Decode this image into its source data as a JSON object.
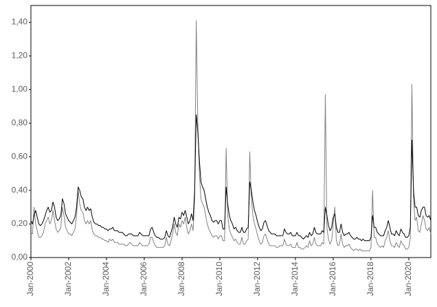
{
  "chart_data": {
    "type": "line",
    "x": [
      "Jan-2000",
      "Feb-2000",
      "Mar-2000",
      "Apr-2000",
      "May-2000",
      "Jun-2000",
      "Jul-2000",
      "Aug-2000",
      "Sep-2000",
      "Oct-2000",
      "Nov-2000",
      "Dec-2000",
      "Jan-2001",
      "Feb-2001",
      "Mar-2001",
      "Apr-2001",
      "May-2001",
      "Jun-2001",
      "Jul-2001",
      "Aug-2001",
      "Sep-2001",
      "Oct-2001",
      "Nov-2001",
      "Dec-2001",
      "Jan-2002",
      "Feb-2002",
      "Mar-2002",
      "Apr-2002",
      "May-2002",
      "Jun-2002",
      "Jul-2002",
      "Aug-2002",
      "Sep-2002",
      "Oct-2002",
      "Nov-2002",
      "Dec-2002",
      "Jan-2003",
      "Feb-2003",
      "Mar-2003",
      "Apr-2003",
      "May-2003",
      "Jun-2003",
      "Jul-2003",
      "Aug-2003",
      "Sep-2003",
      "Oct-2003",
      "Nov-2003",
      "Dec-2003",
      "Jan-2004",
      "Feb-2004",
      "Mar-2004",
      "Apr-2004",
      "May-2004",
      "Jun-2004",
      "Jul-2004",
      "Aug-2004",
      "Sep-2004",
      "Oct-2004",
      "Nov-2004",
      "Dec-2004",
      "Jan-2005",
      "Feb-2005",
      "Mar-2005",
      "Apr-2005",
      "May-2005",
      "Jun-2005",
      "Jul-2005",
      "Aug-2005",
      "Sep-2005",
      "Oct-2005",
      "Nov-2005",
      "Dec-2005",
      "Jan-2006",
      "Feb-2006",
      "Mar-2006",
      "Apr-2006",
      "May-2006",
      "Jun-2006",
      "Jul-2006",
      "Aug-2006",
      "Sep-2006",
      "Oct-2006",
      "Nov-2006",
      "Dec-2006",
      "Jan-2007",
      "Feb-2007",
      "Mar-2007",
      "Apr-2007",
      "May-2007",
      "Jun-2007",
      "Jul-2007",
      "Aug-2007",
      "Sep-2007",
      "Oct-2007",
      "Nov-2007",
      "Dec-2007",
      "Jan-2008",
      "Feb-2008",
      "Mar-2008",
      "Apr-2008",
      "May-2008",
      "Jun-2008",
      "Jul-2008",
      "Aug-2008",
      "Sep-2008",
      "Oct-2008",
      "Nov-2008",
      "Dec-2008",
      "Jan-2009",
      "Feb-2009",
      "Mar-2009",
      "Apr-2009",
      "May-2009",
      "Jun-2009",
      "Jul-2009",
      "Aug-2009",
      "Sep-2009",
      "Oct-2009",
      "Nov-2009",
      "Dec-2009",
      "Jan-2010",
      "Feb-2010",
      "Mar-2010",
      "Apr-2010",
      "May-2010",
      "Jun-2010",
      "Jul-2010",
      "Aug-2010",
      "Sep-2010",
      "Oct-2010",
      "Nov-2010",
      "Dec-2010",
      "Jan-2011",
      "Feb-2011",
      "Mar-2011",
      "Apr-2011",
      "May-2011",
      "Jun-2011",
      "Jul-2011",
      "Aug-2011",
      "Sep-2011",
      "Oct-2011",
      "Nov-2011",
      "Dec-2011",
      "Jan-2012",
      "Feb-2012",
      "Mar-2012",
      "Apr-2012",
      "May-2012",
      "Jun-2012",
      "Jul-2012",
      "Aug-2012",
      "Sep-2012",
      "Oct-2012",
      "Nov-2012",
      "Dec-2012",
      "Jan-2013",
      "Feb-2013",
      "Mar-2013",
      "Apr-2013",
      "May-2013",
      "Jun-2013",
      "Jul-2013",
      "Aug-2013",
      "Sep-2013",
      "Oct-2013",
      "Nov-2013",
      "Dec-2013",
      "Jan-2014",
      "Feb-2014",
      "Mar-2014",
      "Apr-2014",
      "May-2014",
      "Jun-2014",
      "Jul-2014",
      "Aug-2014",
      "Sep-2014",
      "Oct-2014",
      "Nov-2014",
      "Dec-2014",
      "Jan-2015",
      "Feb-2015",
      "Mar-2015",
      "Apr-2015",
      "May-2015",
      "Jun-2015",
      "Jul-2015",
      "Aug-2015",
      "Sep-2015",
      "Oct-2015",
      "Nov-2015",
      "Dec-2015",
      "Jan-2016",
      "Feb-2016",
      "Mar-2016",
      "Apr-2016",
      "May-2016",
      "Jun-2016",
      "Jul-2016",
      "Aug-2016",
      "Sep-2016",
      "Oct-2016",
      "Nov-2016",
      "Dec-2016",
      "Jan-2017",
      "Feb-2017",
      "Mar-2017",
      "Apr-2017",
      "May-2017",
      "Jun-2017",
      "Jul-2017",
      "Aug-2017",
      "Sep-2017",
      "Oct-2017",
      "Nov-2017",
      "Dec-2017",
      "Jan-2018",
      "Feb-2018",
      "Mar-2018",
      "Apr-2018",
      "May-2018",
      "Jun-2018",
      "Jul-2018",
      "Aug-2018",
      "Sep-2018",
      "Oct-2018",
      "Nov-2018",
      "Dec-2018",
      "Jan-2019",
      "Feb-2019",
      "Mar-2019",
      "Apr-2019",
      "May-2019",
      "Jun-2019",
      "Jul-2019",
      "Aug-2019",
      "Sep-2019",
      "Oct-2019",
      "Nov-2019",
      "Dec-2019",
      "Jan-2020",
      "Feb-2020",
      "Mar-2020",
      "Apr-2020",
      "May-2020",
      "Jun-2020",
      "Jul-2020",
      "Aug-2020",
      "Sep-2020",
      "Oct-2020",
      "Nov-2020",
      "Dec-2020",
      "Jan-2021",
      "Feb-2021",
      "Mar-2021"
    ],
    "xticks": [
      "Jan-2000",
      "Jan-2002",
      "Jan-2004",
      "Jan-2006",
      "Jan-2008",
      "Jan-2010",
      "Jan-2012",
      "Jan-2014",
      "Jan-2016",
      "Jan-2018",
      "Jan-2020"
    ],
    "series": [
      {
        "color": "#000000",
        "values": [
          0.22,
          0.2,
          0.25,
          0.28,
          0.24,
          0.2,
          0.19,
          0.2,
          0.22,
          0.25,
          0.28,
          0.3,
          0.27,
          0.28,
          0.33,
          0.3,
          0.24,
          0.22,
          0.23,
          0.25,
          0.35,
          0.32,
          0.26,
          0.24,
          0.22,
          0.21,
          0.2,
          0.22,
          0.24,
          0.3,
          0.42,
          0.4,
          0.36,
          0.35,
          0.3,
          0.28,
          0.3,
          0.28,
          0.29,
          0.24,
          0.21,
          0.2,
          0.2,
          0.19,
          0.19,
          0.18,
          0.18,
          0.17,
          0.17,
          0.16,
          0.17,
          0.17,
          0.18,
          0.16,
          0.16,
          0.16,
          0.15,
          0.15,
          0.15,
          0.14,
          0.13,
          0.13,
          0.14,
          0.14,
          0.14,
          0.13,
          0.13,
          0.13,
          0.13,
          0.15,
          0.14,
          0.13,
          0.13,
          0.13,
          0.13,
          0.13,
          0.17,
          0.18,
          0.15,
          0.13,
          0.12,
          0.12,
          0.11,
          0.11,
          0.11,
          0.12,
          0.16,
          0.13,
          0.12,
          0.15,
          0.18,
          0.24,
          0.2,
          0.18,
          0.24,
          0.23,
          0.27,
          0.25,
          0.28,
          0.24,
          0.2,
          0.22,
          0.26,
          0.22,
          0.4,
          0.85,
          0.75,
          0.58,
          0.45,
          0.42,
          0.4,
          0.35,
          0.3,
          0.27,
          0.25,
          0.22,
          0.21,
          0.22,
          0.22,
          0.2,
          0.22,
          0.22,
          0.17,
          0.17,
          0.42,
          0.32,
          0.25,
          0.22,
          0.2,
          0.17,
          0.18,
          0.16,
          0.15,
          0.15,
          0.18,
          0.15,
          0.15,
          0.17,
          0.18,
          0.45,
          0.4,
          0.33,
          0.28,
          0.25,
          0.21,
          0.18,
          0.16,
          0.17,
          0.21,
          0.22,
          0.19,
          0.16,
          0.15,
          0.14,
          0.14,
          0.14,
          0.13,
          0.13,
          0.13,
          0.13,
          0.13,
          0.17,
          0.15,
          0.14,
          0.14,
          0.15,
          0.13,
          0.13,
          0.13,
          0.15,
          0.13,
          0.13,
          0.12,
          0.11,
          0.12,
          0.13,
          0.12,
          0.15,
          0.13,
          0.14,
          0.18,
          0.15,
          0.14,
          0.14,
          0.14,
          0.16,
          0.15,
          0.3,
          0.25,
          0.19,
          0.16,
          0.18,
          0.24,
          0.26,
          0.18,
          0.15,
          0.15,
          0.2,
          0.15,
          0.13,
          0.14,
          0.14,
          0.15,
          0.13,
          0.12,
          0.11,
          0.11,
          0.12,
          0.11,
          0.11,
          0.1,
          0.11,
          0.1,
          0.1,
          0.1,
          0.1,
          0.12,
          0.25,
          0.18,
          0.18,
          0.15,
          0.14,
          0.13,
          0.13,
          0.13,
          0.16,
          0.18,
          0.22,
          0.18,
          0.14,
          0.14,
          0.13,
          0.16,
          0.14,
          0.13,
          0.17,
          0.15,
          0.14,
          0.12,
          0.12,
          0.13,
          0.18,
          0.7,
          0.4,
          0.3,
          0.3,
          0.25,
          0.24,
          0.28,
          0.3,
          0.3,
          0.25,
          0.24,
          0.25,
          0.22
        ]
      },
      {
        "color": "#808080",
        "values": [
          0.15,
          0.14,
          0.3,
          0.2,
          0.16,
          0.12,
          0.12,
          0.13,
          0.15,
          0.2,
          0.22,
          0.24,
          0.2,
          0.22,
          0.28,
          0.22,
          0.17,
          0.15,
          0.16,
          0.18,
          0.3,
          0.25,
          0.18,
          0.16,
          0.14,
          0.14,
          0.13,
          0.15,
          0.17,
          0.25,
          0.4,
          0.32,
          0.28,
          0.27,
          0.22,
          0.2,
          0.22,
          0.2,
          0.22,
          0.16,
          0.14,
          0.13,
          0.13,
          0.12,
          0.12,
          0.11,
          0.11,
          0.1,
          0.1,
          0.09,
          0.11,
          0.1,
          0.11,
          0.09,
          0.09,
          0.09,
          0.08,
          0.08,
          0.08,
          0.08,
          0.07,
          0.07,
          0.08,
          0.09,
          0.08,
          0.07,
          0.07,
          0.07,
          0.07,
          0.09,
          0.08,
          0.07,
          0.07,
          0.07,
          0.07,
          0.08,
          0.12,
          0.12,
          0.09,
          0.07,
          0.06,
          0.06,
          0.06,
          0.06,
          0.06,
          0.07,
          0.12,
          0.08,
          0.07,
          0.1,
          0.14,
          0.2,
          0.15,
          0.13,
          0.2,
          0.18,
          0.22,
          0.2,
          0.24,
          0.18,
          0.14,
          0.16,
          0.2,
          0.16,
          0.35,
          1.41,
          0.8,
          0.5,
          0.35,
          0.32,
          0.3,
          0.25,
          0.2,
          0.17,
          0.15,
          0.13,
          0.12,
          0.13,
          0.13,
          0.11,
          0.13,
          0.13,
          0.1,
          0.1,
          0.65,
          0.25,
          0.17,
          0.14,
          0.12,
          0.1,
          0.11,
          0.09,
          0.08,
          0.08,
          0.12,
          0.08,
          0.08,
          0.1,
          0.11,
          0.63,
          0.35,
          0.25,
          0.2,
          0.17,
          0.13,
          0.1,
          0.08,
          0.09,
          0.13,
          0.14,
          0.11,
          0.08,
          0.07,
          0.07,
          0.07,
          0.07,
          0.06,
          0.06,
          0.07,
          0.07,
          0.07,
          0.11,
          0.08,
          0.07,
          0.07,
          0.08,
          0.06,
          0.06,
          0.06,
          0.09,
          0.06,
          0.06,
          0.05,
          0.05,
          0.06,
          0.07,
          0.06,
          0.1,
          0.07,
          0.08,
          0.12,
          0.08,
          0.07,
          0.07,
          0.07,
          0.09,
          0.08,
          0.97,
          0.18,
          0.11,
          0.08,
          0.1,
          0.2,
          0.3,
          0.1,
          0.07,
          0.08,
          0.14,
          0.08,
          0.06,
          0.07,
          0.07,
          0.08,
          0.06,
          0.05,
          0.04,
          0.05,
          0.05,
          0.04,
          0.05,
          0.04,
          0.04,
          0.04,
          0.04,
          0.04,
          0.04,
          0.06,
          0.4,
          0.12,
          0.12,
          0.08,
          0.07,
          0.06,
          0.07,
          0.06,
          0.1,
          0.12,
          0.16,
          0.1,
          0.07,
          0.07,
          0.06,
          0.09,
          0.07,
          0.06,
          0.1,
          0.08,
          0.07,
          0.05,
          0.05,
          0.06,
          0.12,
          1.03,
          0.35,
          0.22,
          0.24,
          0.16,
          0.15,
          0.2,
          0.25,
          0.22,
          0.17,
          0.16,
          0.18,
          0.14
        ]
      }
    ],
    "ylim": [
      0,
      1.5
    ],
    "yticks": [
      {
        "value": 0,
        "label": "0,00"
      },
      {
        "value": 0.2,
        "label": "0,20"
      },
      {
        "value": 0.4,
        "label": "0,40"
      },
      {
        "value": 0.6,
        "label": "0,60"
      },
      {
        "value": 0.8,
        "label": "0,80"
      },
      {
        "value": 1.0,
        "label": "1,00"
      },
      {
        "value": 1.2,
        "label": "1,20"
      },
      {
        "value": 1.4,
        "label": "1,40"
      }
    ]
  }
}
